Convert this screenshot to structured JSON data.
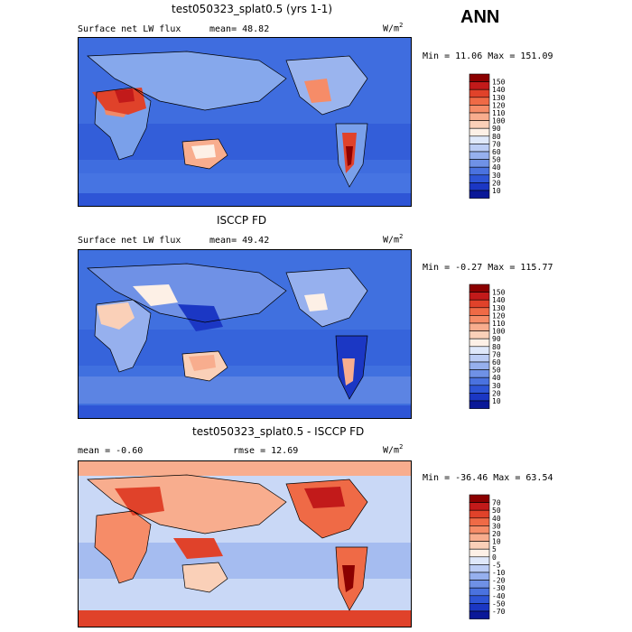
{
  "season": "ANN",
  "panels": [
    {
      "title": "test050323_splat0.5 (yrs 1-1)",
      "variable": "Surface net LW flux",
      "stat": "mean=  48.82",
      "unit_base": "W/m",
      "unit_exp": "2",
      "minmax": "Min =  11.06 Max = 151.09",
      "colorbar_labels": [
        "150",
        "140",
        "130",
        "120",
        "110",
        "100",
        "90",
        "80",
        "70",
        "60",
        "50",
        "40",
        "30",
        "20",
        "10"
      ],
      "colorbar_colors": [
        "#8b0000",
        "#c21a1a",
        "#e0422a",
        "#ef6a46",
        "#f68c68",
        "#f8ad8e",
        "#fad0b8",
        "#fdf0e6",
        "#dfe8fa",
        "#bccdf5",
        "#96b0ee",
        "#6f91e6",
        "#4a72df",
        "#2e55d6",
        "#1b37c4",
        "#0a1898"
      ]
    },
    {
      "title": "ISCCP FD",
      "variable": "Surface net LW flux",
      "stat": "mean=  49.42",
      "unit_base": "W/m",
      "unit_exp": "2",
      "minmax": "Min =  -0.27 Max = 115.77",
      "colorbar_labels": [
        "150",
        "140",
        "130",
        "120",
        "110",
        "100",
        "90",
        "80",
        "70",
        "60",
        "50",
        "40",
        "30",
        "20",
        "10"
      ],
      "colorbar_colors": [
        "#8b0000",
        "#c21a1a",
        "#e0422a",
        "#ef6a46",
        "#f68c68",
        "#f8ad8e",
        "#fad0b8",
        "#fdf0e6",
        "#dfe8fa",
        "#bccdf5",
        "#96b0ee",
        "#6f91e6",
        "#4a72df",
        "#2e55d6",
        "#1b37c4",
        "#0a1898"
      ]
    },
    {
      "title": "test050323_splat0.5 - ISCCP FD",
      "stat_mean": "mean =  -0.60",
      "stat_rmse": "rmse =  12.69",
      "unit_base": "W/m",
      "unit_exp": "2",
      "minmax": "Min = -36.46 Max =  63.54",
      "colorbar_labels": [
        "70",
        "50",
        "40",
        "30",
        "20",
        "10",
        "5",
        "0",
        "-5",
        "-10",
        "-20",
        "-30",
        "-40",
        "-50",
        "-70"
      ],
      "colorbar_colors": [
        "#8b0000",
        "#c21a1a",
        "#e0422a",
        "#ef6a46",
        "#f68c68",
        "#f8ad8e",
        "#fad0b8",
        "#fdf0e6",
        "#dfe8fa",
        "#bccdf5",
        "#96b0ee",
        "#6f91e6",
        "#4a72df",
        "#2e55d6",
        "#1b37c4",
        "#0a1898"
      ]
    }
  ]
}
